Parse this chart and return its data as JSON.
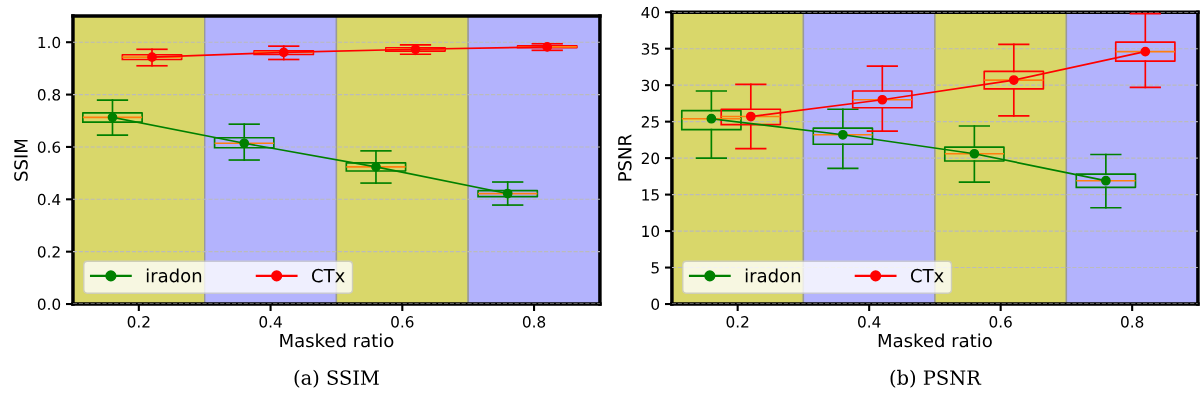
{
  "chart_data": [
    {
      "type": "box",
      "ylabel": "SSIM",
      "xlabel": "Masked ratio",
      "annotations": [
        "(a) SSIM"
      ],
      "xlim": [
        0.1,
        0.9
      ],
      "xticks": [
        0.2,
        0.4,
        0.6,
        0.8
      ],
      "ylim": [
        0,
        1.1
      ],
      "yticks": [
        {
          "value": 0,
          "label": "0.0"
        },
        0.2,
        0.4,
        0.6,
        0.8,
        {
          "value": 1,
          "label": "1.0"
        }
      ],
      "grid": "y",
      "legend": "bottom left",
      "bands": [
        {
          "axis": "x",
          "from": 0.1,
          "to": 0.3,
          "color": "#d9d76a"
        },
        {
          "axis": "x",
          "from": 0.3,
          "to": 0.5,
          "color": "#b3b3fd"
        },
        {
          "axis": "x",
          "from": 0.5,
          "to": 0.7,
          "color": "#d9d76a"
        },
        {
          "axis": "x",
          "from": 0.7,
          "to": 0.9,
          "color": "#b3b3fd"
        }
      ],
      "series": [
        {
          "name": "iradon",
          "color": "#008000",
          "x": [
            0.16,
            0.36,
            0.56,
            0.76
          ],
          "boxes": [
            {
              "low": 0.645,
              "q1": 0.695,
              "median": 0.713,
              "q3": 0.73,
              "high": 0.779
            },
            {
              "low": 0.55,
              "q1": 0.597,
              "median": 0.614,
              "q3": 0.635,
              "high": 0.687
            },
            {
              "low": 0.462,
              "q1": 0.508,
              "median": 0.524,
              "q3": 0.539,
              "high": 0.585
            },
            {
              "low": 0.378,
              "q1": 0.41,
              "median": 0.422,
              "q3": 0.433,
              "high": 0.466
            }
          ]
        },
        {
          "type": "line",
          "color": "#008000",
          "marker": "circle",
          "x": [
            0.16,
            0.36,
            0.56,
            0.76
          ],
          "values": [
            0.713,
            0.614,
            0.524,
            0.422
          ]
        },
        {
          "name": "CTx",
          "color": "#ff0000",
          "x": [
            0.22,
            0.42,
            0.62,
            0.82
          ],
          "boxes": [
            {
              "low": 0.91,
              "q1": 0.934,
              "median": 0.943,
              "q3": 0.952,
              "high": 0.973
            },
            {
              "low": 0.934,
              "q1": 0.953,
              "median": 0.961,
              "q3": 0.967,
              "high": 0.985
            },
            {
              "low": 0.954,
              "q1": 0.966,
              "median": 0.973,
              "q3": 0.979,
              "high": 0.99
            },
            {
              "low": 0.969,
              "q1": 0.979,
              "median": 0.982,
              "q3": 0.986,
              "high": 0.994
            }
          ]
        },
        {
          "type": "line",
          "color": "#ff0000",
          "marker": "circle",
          "x": [
            0.22,
            0.42,
            0.62,
            0.82
          ],
          "values": [
            0.943,
            0.961,
            0.973,
            0.982
          ]
        }
      ]
    },
    {
      "type": "box",
      "ylabel": "PSNR",
      "xlabel": "Masked ratio",
      "annotations": [
        "(b) PSNR"
      ],
      "xlim": [
        0.1,
        0.9
      ],
      "xticks": [
        0.2,
        0.4,
        0.6,
        0.8
      ],
      "ylim": [
        0,
        40
      ],
      "yticks": [
        0,
        5,
        10,
        15,
        20,
        25,
        30,
        35,
        40
      ],
      "grid": "y",
      "legend": "bottom left",
      "bands": [
        {
          "axis": "x",
          "from": 0.1,
          "to": 0.3,
          "color": "#d9d76a"
        },
        {
          "axis": "x",
          "from": 0.3,
          "to": 0.5,
          "color": "#b3b3fd"
        },
        {
          "axis": "x",
          "from": 0.5,
          "to": 0.7,
          "color": "#d9d76a"
        },
        {
          "axis": "x",
          "from": 0.7,
          "to": 0.9,
          "color": "#b3b3fd"
        }
      ],
      "series": [
        {
          "name": "iradon",
          "color": "#008000",
          "x": [
            0.16,
            0.36,
            0.56,
            0.76
          ],
          "boxes": [
            {
              "low": 20.0,
              "q1": 23.9,
              "median": 25.4,
              "q3": 26.5,
              "high": 29.2
            },
            {
              "low": 18.6,
              "q1": 21.9,
              "median": 23.2,
              "q3": 24.1,
              "high": 26.7
            },
            {
              "low": 16.7,
              "q1": 19.6,
              "median": 20.6,
              "q3": 21.5,
              "high": 24.4
            },
            {
              "low": 13.2,
              "q1": 16.0,
              "median": 16.9,
              "q3": 17.8,
              "high": 20.5
            }
          ]
        },
        {
          "type": "line",
          "color": "#008000",
          "marker": "circle",
          "x": [
            0.16,
            0.36,
            0.56,
            0.76
          ],
          "values": [
            25.4,
            23.2,
            20.6,
            16.9
          ]
        },
        {
          "name": "CTx",
          "color": "#ff0000",
          "x": [
            0.22,
            0.42,
            0.62,
            0.82
          ],
          "boxes": [
            {
              "low": 21.3,
              "q1": 24.6,
              "median": 25.7,
              "q3": 26.7,
              "high": 30.1
            },
            {
              "low": 23.7,
              "q1": 26.9,
              "median": 28.0,
              "q3": 29.2,
              "high": 32.6
            },
            {
              "low": 25.8,
              "q1": 29.5,
              "median": 30.7,
              "q3": 31.9,
              "high": 35.6
            },
            {
              "low": 29.7,
              "q1": 33.3,
              "median": 34.6,
              "q3": 35.9,
              "high": 39.8
            }
          ]
        },
        {
          "type": "line",
          "color": "#ff0000",
          "marker": "circle",
          "x": [
            0.22,
            0.42,
            0.62,
            0.82
          ],
          "values": [
            25.7,
            28.0,
            30.7,
            34.6
          ]
        }
      ]
    }
  ]
}
